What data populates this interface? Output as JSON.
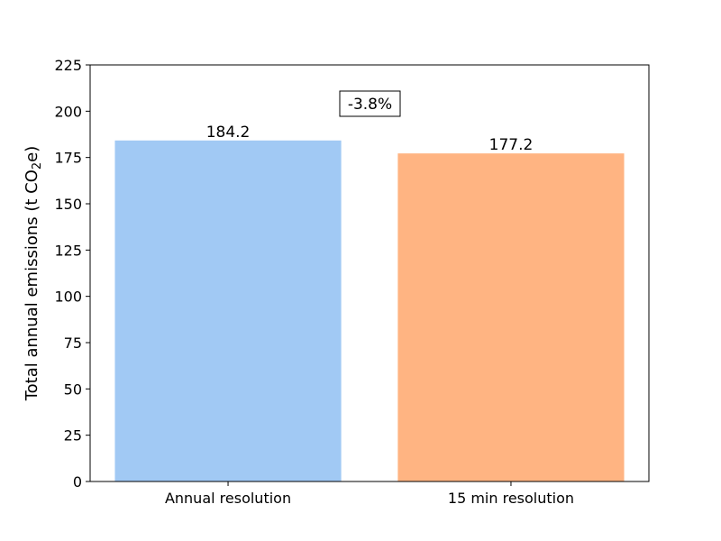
{
  "chart_data": {
    "type": "bar",
    "categories": [
      "Annual resolution",
      "15 min resolution"
    ],
    "values": [
      184.2,
      177.2
    ],
    "value_labels": [
      "184.2",
      "177.2"
    ],
    "colors": [
      "#a1c9f4",
      "#ffb482"
    ],
    "ylabel_main": "Total annual emissions (t CO",
    "ylabel_sub": "2",
    "ylabel_end": "e)",
    "ylim": [
      0,
      225
    ],
    "yticks": [
      0,
      25,
      50,
      75,
      100,
      125,
      150,
      175,
      200,
      225
    ],
    "annotation": "-3.8%",
    "grid": false
  }
}
